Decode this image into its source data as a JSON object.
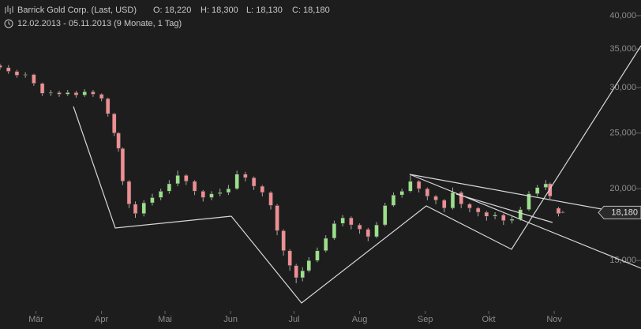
{
  "chart_data": {
    "type": "candlestick",
    "title": "Barrick Gold Corp. (Last, USD)",
    "info": [
      "O: 18,220",
      "H: 18,300",
      "L: 18,130",
      "C: 18,180"
    ],
    "subtitle": "12.02.2013 - 05.11.2013 (9 Monate, 1 Tag)",
    "log_scale": true,
    "up_color": "#9be08a",
    "down_color": "#ee8f93",
    "xlim": [
      0,
      303
    ],
    "xticks": [
      {
        "value": 17,
        "label": "Mär"
      },
      {
        "value": 48,
        "label": "Apr"
      },
      {
        "value": 78,
        "label": "Mai"
      },
      {
        "value": 109,
        "label": "Jun"
      },
      {
        "value": 139,
        "label": "Jul"
      },
      {
        "value": 170,
        "label": "Aug"
      },
      {
        "value": 201,
        "label": "Sep"
      },
      {
        "value": 231,
        "label": "Okt"
      },
      {
        "value": 262,
        "label": "Nov"
      }
    ],
    "ylim": [
      11400,
      42600
    ],
    "yticks": [
      {
        "value": 15000,
        "label": "15,000"
      },
      {
        "value": 20000,
        "label": "20,000"
      },
      {
        "value": 25000,
        "label": "25,000"
      },
      {
        "value": 30000,
        "label": "30,000"
      },
      {
        "value": 35000,
        "label": "35,000"
      },
      {
        "value": 40000,
        "label": "40,000"
      }
    ],
    "last_label": {
      "value": 18180,
      "label": "18,180"
    },
    "x": [
      0,
      4,
      8,
      12,
      16,
      20,
      24,
      28,
      32,
      36,
      40,
      44,
      48,
      51,
      54,
      56,
      58,
      61,
      64,
      68,
      72,
      76,
      80,
      84,
      88,
      92,
      96,
      100,
      104,
      108,
      112,
      116,
      120,
      124,
      128,
      131,
      134,
      137,
      140,
      143,
      146,
      150,
      154,
      158,
      162,
      166,
      170,
      174,
      178,
      182,
      186,
      190,
      194,
      198,
      202,
      206,
      210,
      214,
      218,
      222,
      226,
      230,
      234,
      238,
      242,
      246,
      250,
      254,
      258,
      260,
      264,
      266
    ],
    "open": [
      32800,
      32500,
      32000,
      31500,
      31600,
      30500,
      29300,
      29400,
      29200,
      29400,
      29100,
      29500,
      29200,
      28700,
      27000,
      25000,
      23500,
      20600,
      18800,
      18100,
      18900,
      19300,
      19800,
      20400,
      21100,
      20600,
      19800,
      19300,
      19600,
      19700,
      20000,
      21200,
      20900,
      20200,
      19700,
      18700,
      16900,
      15600,
      14700,
      14000,
      14400,
      15000,
      15600,
      16400,
      17400,
      17800,
      17300,
      17000,
      16500,
      17300,
      18700,
      19500,
      19800,
      20600,
      20000,
      19400,
      19100,
      18500,
      19700,
      18800,
      18500,
      18200,
      17900,
      18000,
      17600,
      17700,
      18400,
      19600,
      20100,
      20400,
      18500,
      18220
    ],
    "high": [
      33000,
      32800,
      32200,
      31900,
      31700,
      30600,
      29700,
      29600,
      29700,
      29600,
      29800,
      29700,
      29300,
      28800,
      27100,
      25100,
      23600,
      20700,
      19000,
      19100,
      19600,
      20000,
      20700,
      21500,
      21200,
      20700,
      19900,
      19800,
      20000,
      20300,
      21500,
      21400,
      21000,
      20300,
      19800,
      18800,
      17000,
      15700,
      14800,
      14600,
      15200,
      15800,
      16600,
      17600,
      18000,
      17900,
      17400,
      17100,
      17500,
      18900,
      19700,
      20000,
      21100,
      20700,
      20100,
      19500,
      19200,
      20100,
      19800,
      18900,
      18600,
      18300,
      18200,
      18100,
      17900,
      18600,
      19800,
      20300,
      20700,
      20500,
      18600,
      18300
    ],
    "low": [
      32200,
      31700,
      31200,
      31200,
      30200,
      29000,
      29000,
      28900,
      29000,
      28800,
      28900,
      28900,
      28400,
      26700,
      24700,
      23200,
      20300,
      18500,
      17800,
      17900,
      18700,
      19100,
      19600,
      20200,
      20300,
      19500,
      19000,
      19100,
      19400,
      19500,
      19900,
      20600,
      19900,
      19400,
      18400,
      16600,
      15300,
      14400,
      13700,
      13800,
      14300,
      14900,
      15500,
      16300,
      17200,
      17000,
      16700,
      16200,
      16400,
      17200,
      18600,
      19300,
      19700,
      19700,
      19100,
      18800,
      18200,
      18400,
      18500,
      18200,
      17900,
      17600,
      17700,
      17300,
      17400,
      17600,
      18300,
      19400,
      19900,
      19200,
      17900,
      18130
    ],
    "close": [
      32500,
      32000,
      31500,
      31600,
      30500,
      29300,
      29400,
      29200,
      29400,
      29100,
      29500,
      29200,
      28700,
      27000,
      25000,
      23500,
      20600,
      18800,
      18100,
      18900,
      19300,
      19800,
      20400,
      21100,
      20600,
      19800,
      19300,
      19600,
      19700,
      20000,
      21200,
      20900,
      20200,
      19700,
      18700,
      16900,
      15600,
      14700,
      14000,
      14400,
      15000,
      15600,
      16400,
      17400,
      17800,
      17300,
      17000,
      16500,
      17300,
      18700,
      19500,
      19800,
      20600,
      20000,
      19400,
      19100,
      18500,
      19700,
      18800,
      18500,
      18200,
      17900,
      18000,
      17600,
      17700,
      18400,
      19600,
      20100,
      20400,
      19400,
      18100,
      18180
    ]
  }
}
